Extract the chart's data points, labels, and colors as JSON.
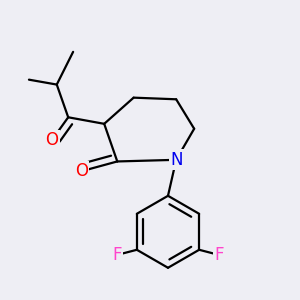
{
  "background_color": "#eeeef4",
  "bond_color": "#000000",
  "atom_colors": {
    "O": "#ff0000",
    "N": "#0000ee",
    "F": "#ff44cc",
    "C": "#000000"
  },
  "bond_width": 1.6,
  "font_size_atoms": 12
}
